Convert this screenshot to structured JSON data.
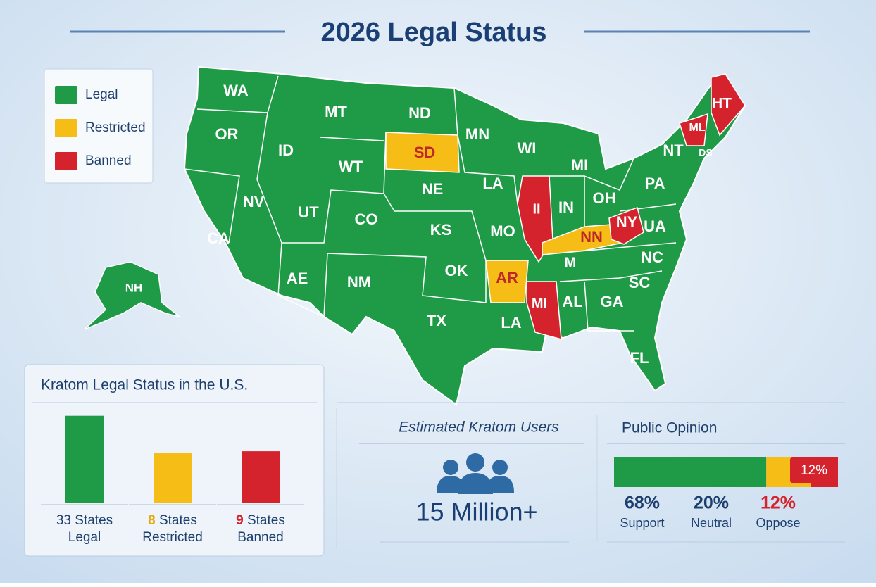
{
  "title": "2026 Legal Status",
  "legend": [
    {
      "label": "Legal",
      "color": "#1f9a47"
    },
    {
      "label": "Restricted",
      "color": "#f6bd16"
    },
    {
      "label": "Banned",
      "color": "#d5232e"
    }
  ],
  "map": {
    "states": [
      {
        "label": "WA",
        "fill": "#1f9a47",
        "text": "#ffffff"
      },
      {
        "label": "OR",
        "fill": "#1f9a47",
        "text": "#ffffff"
      },
      {
        "label": "CA",
        "fill": "#1f9a47",
        "text": "#ffffff"
      },
      {
        "label": "NH",
        "fill": "#1f9a47",
        "text": "#ffffff"
      },
      {
        "label": "MT",
        "fill": "#1f9a47",
        "text": "#ffffff"
      },
      {
        "label": "ID",
        "fill": "#1f9a47",
        "text": "#ffffff"
      },
      {
        "label": "NV",
        "fill": "#1f9a47",
        "text": "#ffffff"
      },
      {
        "label": "UT",
        "fill": "#1f9a47",
        "text": "#ffffff"
      },
      {
        "label": "AE",
        "fill": "#1f9a47",
        "text": "#ffffff"
      },
      {
        "label": "WT",
        "fill": "#1f9a47",
        "text": "#ffffff"
      },
      {
        "label": "CO",
        "fill": "#1f9a47",
        "text": "#ffffff"
      },
      {
        "label": "NM",
        "fill": "#1f9a47",
        "text": "#ffffff"
      },
      {
        "label": "ND",
        "fill": "#1f9a47",
        "text": "#ffffff"
      },
      {
        "label": "SD",
        "fill": "#f6bd16",
        "text": "#c0272d"
      },
      {
        "label": "NE",
        "fill": "#1f9a47",
        "text": "#ffffff"
      },
      {
        "label": "KS",
        "fill": "#1f9a47",
        "text": "#ffffff"
      },
      {
        "label": "OK",
        "fill": "#1f9a47",
        "text": "#ffffff"
      },
      {
        "label": "TX",
        "fill": "#1f9a47",
        "text": "#ffffff"
      },
      {
        "label": "MN",
        "fill": "#1f9a47",
        "text": "#ffffff"
      },
      {
        "label": "LA",
        "fill": "#1f9a47",
        "text": "#ffffff"
      },
      {
        "label": "MO",
        "fill": "#1f9a47",
        "text": "#ffffff"
      },
      {
        "label": "AR",
        "fill": "#f6bd16",
        "text": "#c0272d"
      },
      {
        "label": "LA",
        "fill": "#1f9a47",
        "text": "#ffffff"
      },
      {
        "label": "WI",
        "fill": "#1f9a47",
        "text": "#ffffff"
      },
      {
        "label": "II",
        "fill": "#d5232e",
        "text": "#ffffff"
      },
      {
        "label": "MI",
        "fill": "#1f9a47",
        "text": "#ffffff"
      },
      {
        "label": "IN",
        "fill": "#1f9a47",
        "text": "#ffffff"
      },
      {
        "label": "OH",
        "fill": "#1f9a47",
        "text": "#ffffff"
      },
      {
        "label": "NN",
        "fill": "#f6bd16",
        "text": "#c0272d"
      },
      {
        "label": "M",
        "fill": "#1f9a47",
        "text": "#ffffff"
      },
      {
        "label": "MI",
        "fill": "#d5232e",
        "text": "#ffffff"
      },
      {
        "label": "AL",
        "fill": "#1f9a47",
        "text": "#ffffff"
      },
      {
        "label": "GA",
        "fill": "#1f9a47",
        "text": "#ffffff"
      },
      {
        "label": "FL",
        "fill": "#1f9a47",
        "text": "#ffffff"
      },
      {
        "label": "SC",
        "fill": "#1f9a47",
        "text": "#ffffff"
      },
      {
        "label": "NC",
        "fill": "#1f9a47",
        "text": "#ffffff"
      },
      {
        "label": "UA",
        "fill": "#1f9a47",
        "text": "#ffffff"
      },
      {
        "label": "NY",
        "fill": "#d5232e",
        "text": "#ffffff"
      },
      {
        "label": "PA",
        "fill": "#1f9a47",
        "text": "#ffffff"
      },
      {
        "label": "NT",
        "fill": "#1f9a47",
        "text": "#ffffff"
      },
      {
        "label": "DS",
        "fill": "#1f9a47",
        "text": "#ffffff"
      },
      {
        "label": "ML",
        "fill": "#d5232e",
        "text": "#ffffff"
      },
      {
        "label": "HT",
        "fill": "#d5232e",
        "text": "#ffffff"
      }
    ]
  },
  "status_panel": {
    "title": "Kratom Legal Status in the U.S.",
    "bars": [
      {
        "count": 33,
        "unit": "States",
        "label": "Legal",
        "color": "#1f9a47",
        "count_color": "#1d3f6e"
      },
      {
        "count": 8,
        "unit": "States",
        "label": "Restricted",
        "color": "#f6bd16",
        "count_color": "#e8a80c"
      },
      {
        "count": 9,
        "unit": "States",
        "label": "Banned",
        "color": "#d5232e",
        "count_color": "#d5232e"
      }
    ]
  },
  "users_panel": {
    "title": "Estimated  Kratom Users",
    "value": "15 Million+"
  },
  "opinion_panel": {
    "title": "Public Opinion",
    "segments": [
      {
        "value": 68,
        "value_label": "68%",
        "name": "Support",
        "color": "#1f9a47",
        "label_color": "#1d3f6e"
      },
      {
        "value": 20,
        "value_label": "20%",
        "name": "Neutral",
        "color": "#f6bd16",
        "label_color": "#1d3f6e"
      },
      {
        "value": 12,
        "value_label": "12%",
        "name": "Oppose",
        "color": "#d5232e",
        "label_color": "#d5232e"
      }
    ]
  }
}
